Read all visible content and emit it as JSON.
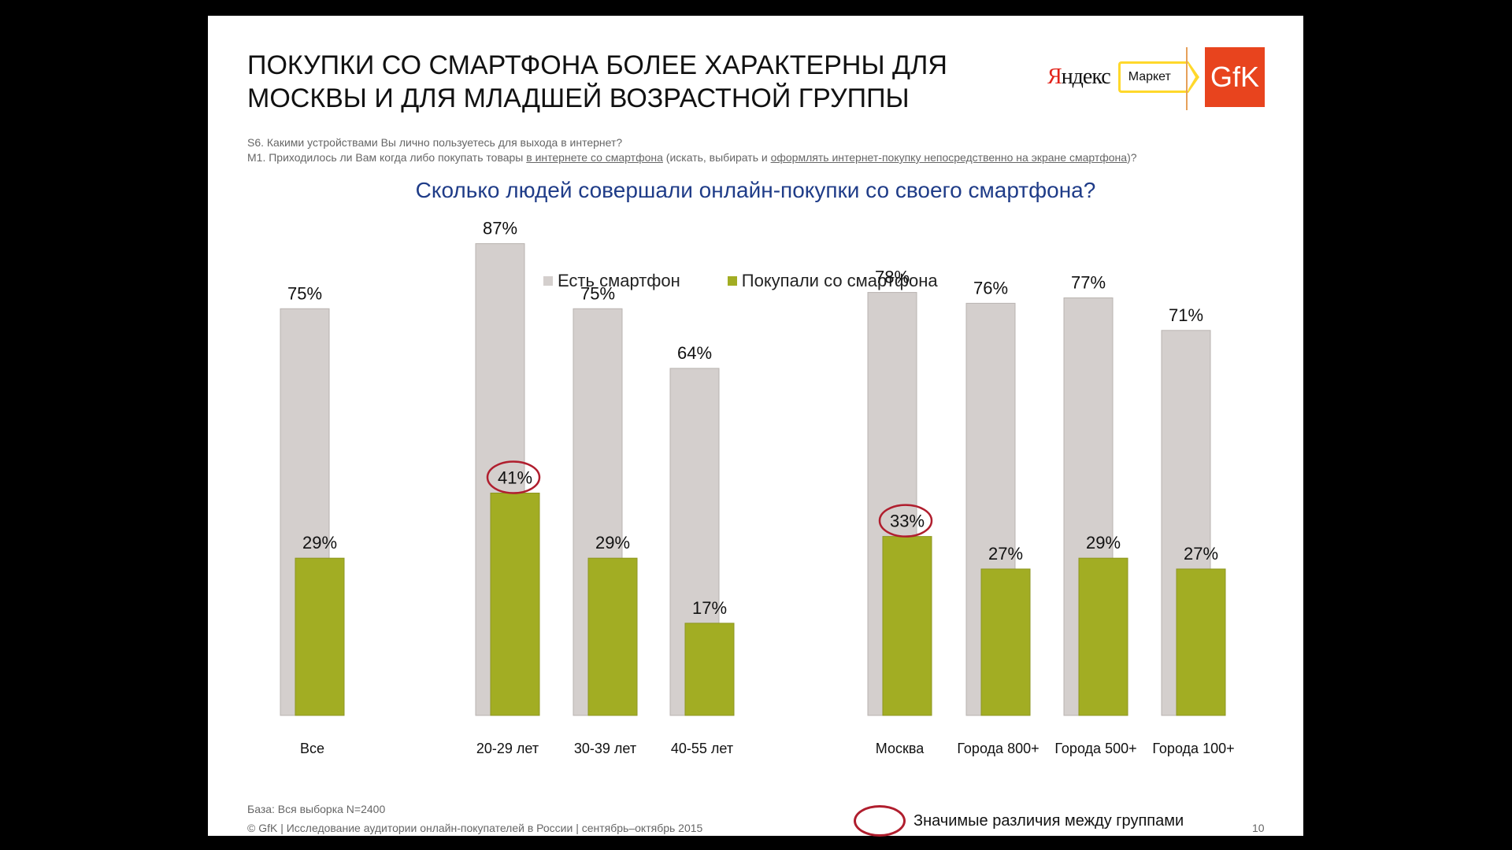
{
  "title_lines": [
    "ПОКУПКИ СО СМАРТФОНА БОЛЕЕ ХАРАКТЕРНЫ ДЛЯ",
    "МОСКВЫ И ДЛЯ МЛАДШЕЙ ВОЗРАСТНОЙ ГРУППЫ"
  ],
  "logos": {
    "yandex_first": "Я",
    "yandex_rest": "ндекс",
    "market": "Маркет",
    "gfk": "GfK"
  },
  "questions": {
    "q1": "S6. Какими устройствами Вы лично пользуетесь для выхода в интернет?",
    "q2_part1": "M1. Приходилось ли Вам когда либо покупать товары ",
    "q2_link1": "в интернете со смартфона",
    "q2_part2": " (искать, выбирать и ",
    "q2_link2": "оформлять интернет-покупку непосредственно на экране смартфона",
    "q2_part3": ")?"
  },
  "chart_title": "Сколько людей совершали онлайн-покупки со своего смартфона?",
  "colors": {
    "has_smartphone": "#d4cfcd",
    "bought_smartphone": "#a2ad23",
    "highlight": "#b01e2e",
    "title_blue": "#1f3c88"
  },
  "chart_data": {
    "type": "bar",
    "categories": [
      "Все",
      "20-29 лет",
      "30-39 лет",
      "40-55 лет",
      "Москва",
      "Города 800+",
      "Города 500+",
      "Города 100+"
    ],
    "series": [
      {
        "name": "Есть смартфон",
        "values": [
          75,
          87,
          75,
          64,
          78,
          76,
          77,
          71
        ]
      },
      {
        "name": "Покупали со смартфона",
        "values": [
          29,
          41,
          29,
          17,
          33,
          27,
          29,
          27
        ]
      }
    ],
    "value_labels": {
      "series0": [
        "75%",
        "87%",
        "75%",
        "64%",
        "78%",
        "76%",
        "77%",
        "71%"
      ],
      "series1": [
        "29%",
        "41%",
        "29%",
        "17%",
        "33%",
        "27%",
        "29%",
        "27%"
      ]
    },
    "highlighted": [
      "20-29 лет",
      "Москва"
    ],
    "ylim": [
      0,
      100
    ],
    "legend_position": "top-center",
    "grid": false
  },
  "base_note": "База: Вся выборка N=2400",
  "significance_note": "Значимые различия между группами",
  "footer": "© GfK | Исследование аудитории онлайн-покупателей в России | сентябрь–октябрь 2015",
  "page_number": "10"
}
